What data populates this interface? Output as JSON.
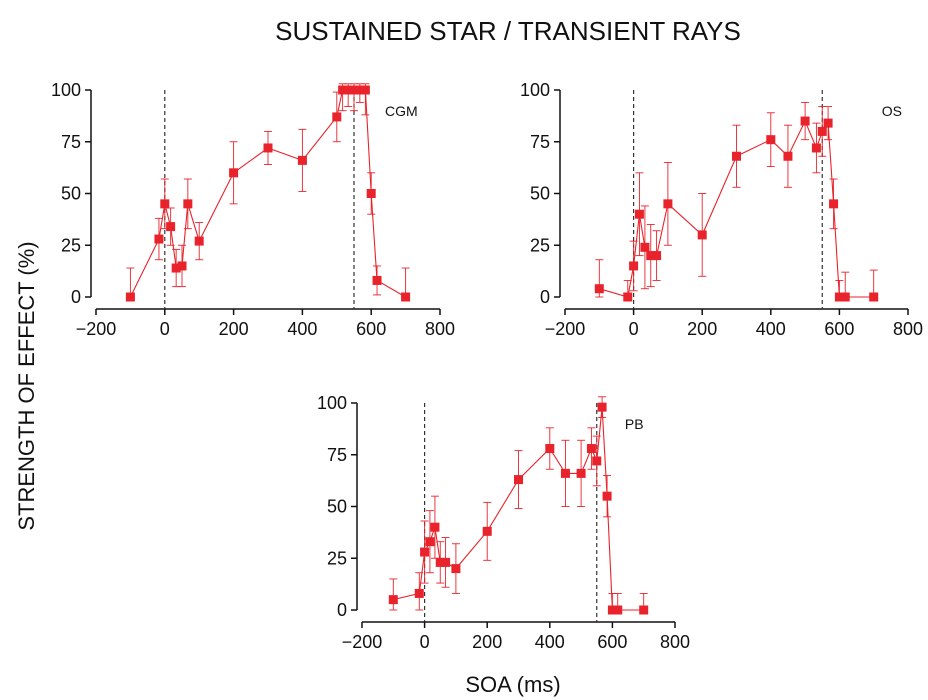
{
  "title": "SUSTAINED STAR / TRANSIENT RAYS",
  "ylabel": "STRENGTH OF EFFECT (%)",
  "xlabel": "SOA (ms)",
  "colors": {
    "series": "#e8232b",
    "axis": "#111111"
  },
  "chart_data": [
    {
      "type": "scatter",
      "label": "CGM",
      "x_ticks": [
        -200,
        0,
        200,
        400,
        600,
        800
      ],
      "y_ticks": [
        0,
        25,
        50,
        75,
        100
      ],
      "xlim": [
        -200,
        800
      ],
      "ylim": [
        0,
        100
      ],
      "vlines": [
        0,
        550
      ],
      "x": [
        -100,
        -17,
        0,
        17,
        33,
        50,
        67,
        100,
        200,
        300,
        400,
        500,
        517,
        533,
        550,
        567,
        583,
        600,
        617,
        700
      ],
      "y": [
        0,
        28,
        45,
        34,
        14,
        15,
        45,
        27,
        60,
        72,
        66,
        87,
        100,
        100,
        100,
        100,
        100,
        50,
        8,
        0
      ],
      "yerr": [
        14,
        10,
        12,
        9,
        9,
        10,
        12,
        9,
        15,
        8,
        15,
        12,
        10,
        8,
        10,
        6,
        12,
        10,
        7,
        14
      ]
    },
    {
      "type": "scatter",
      "label": "OS",
      "x_ticks": [
        -200,
        0,
        200,
        400,
        600,
        800
      ],
      "y_ticks": [
        0,
        25,
        50,
        75,
        100
      ],
      "xlim": [
        -200,
        800
      ],
      "ylim": [
        0,
        100
      ],
      "vlines": [
        0,
        550
      ],
      "x": [
        -100,
        -17,
        0,
        17,
        33,
        50,
        67,
        100,
        200,
        300,
        400,
        450,
        500,
        533,
        550,
        567,
        583,
        600,
        617,
        700
      ],
      "y": [
        4,
        0,
        15,
        40,
        24,
        20,
        20,
        45,
        30,
        68,
        76,
        68,
        85,
        72,
        80,
        84,
        45,
        0,
        0,
        0
      ],
      "yerr": [
        14,
        8,
        12,
        20,
        20,
        15,
        12,
        20,
        20,
        15,
        13,
        15,
        9,
        12,
        12,
        8,
        12,
        8,
        12,
        13
      ]
    },
    {
      "type": "scatter",
      "label": "PB",
      "x_ticks": [
        -200,
        0,
        200,
        400,
        600,
        800
      ],
      "y_ticks": [
        0,
        25,
        50,
        75,
        100
      ],
      "xlim": [
        -200,
        800
      ],
      "ylim": [
        0,
        100
      ],
      "vlines": [
        0,
        550
      ],
      "x": [
        -100,
        -17,
        0,
        17,
        33,
        50,
        67,
        100,
        200,
        300,
        400,
        450,
        500,
        533,
        550,
        567,
        583,
        600,
        617,
        700
      ],
      "y": [
        5,
        8,
        28,
        33,
        40,
        23,
        23,
        20,
        38,
        63,
        78,
        66,
        66,
        78,
        72,
        98,
        55,
        0,
        0,
        0
      ],
      "yerr": [
        10,
        10,
        15,
        15,
        15,
        10,
        12,
        12,
        14,
        14,
        10,
        16,
        16,
        10,
        12,
        5,
        10,
        8,
        8,
        8
      ]
    }
  ]
}
